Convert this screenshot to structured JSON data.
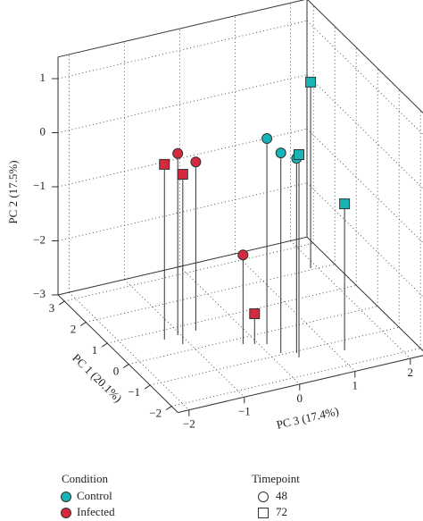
{
  "chart_data": {
    "type": "scatter3d",
    "xlabel": "PC 1 (20.1%)",
    "ylabel": "PC 2 (17.5%)",
    "zlabel": "PC 3 (17.4%)",
    "xlim": [
      -2.3,
      3.3
    ],
    "ylim": [
      -3,
      1.4
    ],
    "zlim": [
      -2.2,
      2.3
    ],
    "xticks": [
      {
        "value": -2,
        "label": "−2"
      },
      {
        "value": -1,
        "label": "−1"
      },
      0,
      1,
      2,
      3
    ],
    "yticks": [
      {
        "value": -3,
        "label": "−3"
      },
      {
        "value": -2,
        "label": "−2"
      },
      {
        "value": -1,
        "label": "−1"
      },
      0,
      1
    ],
    "zticks": [
      {
        "value": -2,
        "label": "−2"
      },
      {
        "value": -1,
        "label": "−1"
      },
      0,
      1,
      2
    ],
    "grid": true,
    "legend": {
      "condition": {
        "title": "Condition",
        "items": [
          {
            "name": "Control",
            "color": "#17b3b5"
          },
          {
            "name": "Infected",
            "color": "#d52a3d"
          }
        ]
      },
      "timepoint": {
        "title": "Timepoint",
        "items": [
          {
            "name": "48",
            "marker": "circle"
          },
          {
            "name": "72",
            "marker": "square"
          }
        ]
      }
    },
    "series": [
      {
        "condition": "Control",
        "timepoint": "48",
        "x": [
          -0.46,
          -0.93,
          -1.07
        ],
        "y": [
          0.8,
          0.7,
          0.6
        ],
        "z": [
          0.12,
          0.19,
          0.42
        ]
      },
      {
        "condition": "Control",
        "timepoint": "72",
        "x": [
          2.07,
          -1.26,
          -1.4
        ],
        "y": [
          0.44,
          0.75,
          -0.29
        ],
        "z": [
          1.89,
          0.39,
          1.16
        ]
      },
      {
        "condition": "Infected",
        "timepoint": "48",
        "x": [
          0.68,
          0.69,
          -0.25
        ],
        "y": [
          0.36,
          0.12,
          -1.35
        ],
        "z": [
          -1.05,
          -0.72,
          -0.23
        ]
      },
      {
        "condition": "Infected",
        "timepoint": "72",
        "x": [
          0.63,
          0.29,
          -0.35
        ],
        "y": [
          0.24,
          0.14,
          -2.44
        ],
        "z": [
          -1.31,
          -1.11,
          -0.06
        ]
      }
    ]
  }
}
